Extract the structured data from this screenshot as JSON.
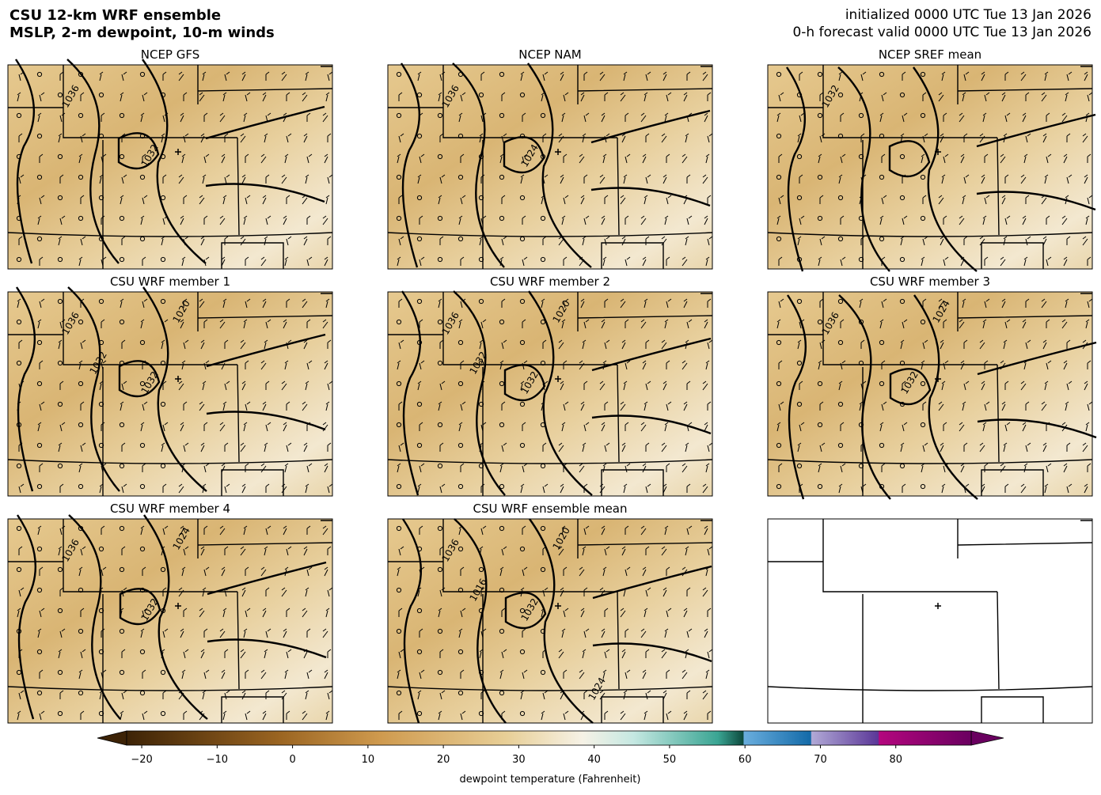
{
  "header": {
    "title_line1": "CSU 12-km WRF ensemble",
    "title_line2": "MSLP, 2-m dewpoint, 10-m winds",
    "init": "initialized 0000 UTC Tue 13 Jan 2026",
    "valid": "0-h forecast valid 0000 UTC Tue 13 Jan 2026"
  },
  "panels": [
    {
      "title": "NCEP GFS",
      "contour_labels": [
        "1036",
        "1032"
      ]
    },
    {
      "title": "NCEP NAM",
      "contour_labels": [
        "1036",
        "1024"
      ]
    },
    {
      "title": "NCEP SREF mean",
      "contour_labels": [
        "1032"
      ]
    },
    {
      "title": "CSU WRF member 1",
      "contour_labels": [
        "1036",
        "1032",
        "1020",
        "1032"
      ]
    },
    {
      "title": "CSU WRF member 2",
      "contour_labels": [
        "1036",
        "1032",
        "1020",
        "1032"
      ]
    },
    {
      "title": "CSU WRF member 3",
      "contour_labels": [
        "1036",
        "1032",
        "1024"
      ]
    },
    {
      "title": "CSU WRF member 4",
      "contour_labels": [
        "1036",
        "1032",
        "1024"
      ]
    },
    {
      "title": "CSU WRF ensemble mean",
      "contour_labels": [
        "1036",
        "1032",
        "1020",
        "1016",
        "1024"
      ]
    }
  ],
  "colorbar": {
    "range": [
      -22,
      90
    ],
    "label": "dewpoint temperature (Fahrenheit)",
    "ticks": [
      {
        "value": -20,
        "label": "−20"
      },
      {
        "value": -10,
        "label": "−10"
      },
      0,
      10,
      20,
      30,
      40,
      50,
      60,
      70,
      80
    ]
  }
}
